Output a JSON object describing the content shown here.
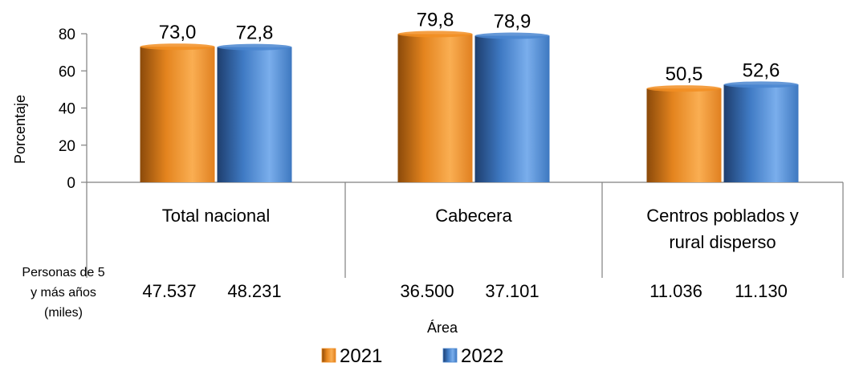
{
  "chart_data": {
    "type": "bar",
    "categories": [
      "Total nacional",
      "Cabecera",
      "Centros poblados y rural disperso"
    ],
    "category_lines": [
      [
        "Total nacional"
      ],
      [
        "Cabecera"
      ],
      [
        "Centros poblados y",
        "rural disperso"
      ]
    ],
    "series": [
      {
        "name": "2021",
        "values": [
          73.0,
          79.8,
          50.5
        ],
        "labels": [
          "73,0",
          "79,8",
          "50,5"
        ],
        "color": "#F28E22"
      },
      {
        "name": "2022",
        "values": [
          72.8,
          78.9,
          52.6
        ],
        "labels": [
          "72,8",
          "78,9",
          "52,6"
        ],
        "color": "#4A86D0"
      }
    ],
    "ylabel": "Porcentaje",
    "xlabel": "Área",
    "ylim": [
      0,
      80
    ],
    "yticks": [
      "0",
      "20",
      "40",
      "60",
      "80"
    ],
    "table_row": {
      "label_lines": [
        "Personas de 5",
        "y más años",
        "(miles)"
      ],
      "values": [
        [
          "47.537",
          "48.231"
        ],
        [
          "36.500",
          "37.101"
        ],
        [
          "11.036",
          "11.130"
        ]
      ]
    },
    "legend_position": "bottom"
  }
}
